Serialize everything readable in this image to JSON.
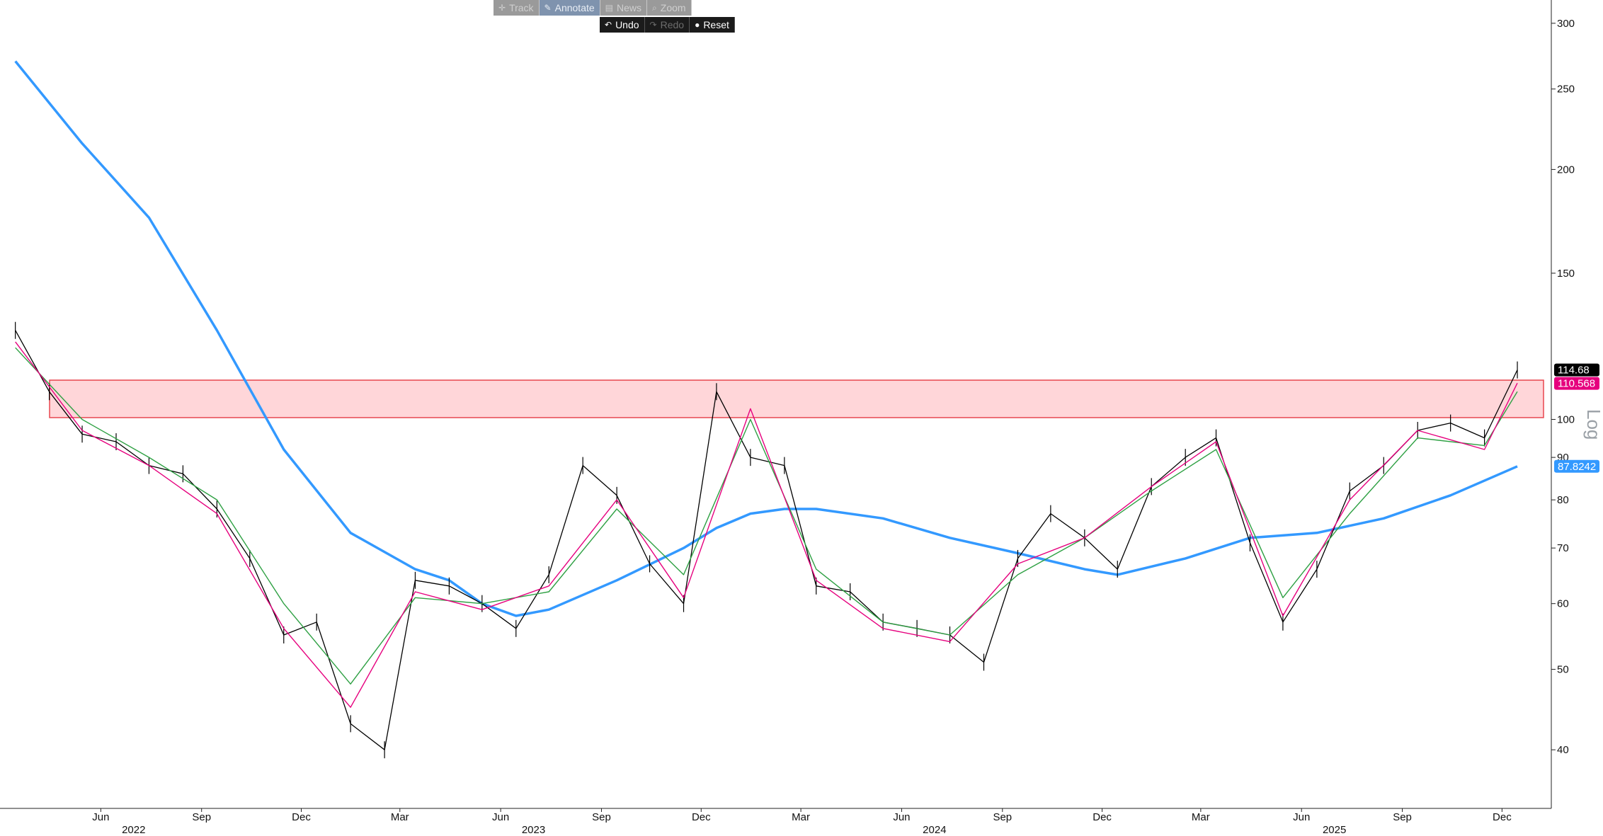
{
  "toolbar_top": [
    {
      "icon": "crosshair-icon",
      "glyph": "✛",
      "label": "Track",
      "active": false
    },
    {
      "icon": "pencil-icon",
      "glyph": "✎",
      "label": "Annotate",
      "active": true
    },
    {
      "icon": "news-icon",
      "glyph": "▤",
      "label": "News",
      "active": false
    },
    {
      "icon": "zoom-icon",
      "glyph": "⌕",
      "label": "Zoom",
      "active": false
    }
  ],
  "toolbar_bottom": [
    {
      "icon": "undo-icon",
      "glyph": "↶",
      "label": "Undo",
      "enabled": true
    },
    {
      "icon": "redo-icon",
      "glyph": "↷",
      "label": "Redo",
      "enabled": false
    },
    {
      "icon": "reset-icon",
      "glyph": "●",
      "label": "Reset",
      "enabled": true
    }
  ],
  "colors": {
    "price": "#000000",
    "ma_fast": "#e6007e",
    "ma_mid": "#2ea043",
    "ma_long": "#3399ff",
    "zone_fill": "#ffd6d9",
    "zone_line": "#e8474f"
  },
  "chart_data": {
    "type": "line",
    "scale": "log",
    "ylim": [
      34,
      320
    ],
    "y_ticks": [
      40,
      50,
      60,
      70,
      80,
      90,
      100,
      150,
      200,
      250,
      300
    ],
    "y_axis_side_text": "Log",
    "x_month_labels": [
      "Jun",
      "Sep",
      "Dec",
      "Mar",
      "Jun",
      "Sep",
      "Dec",
      "Mar",
      "Jun",
      "Sep",
      "Dec",
      "Mar",
      "Jun",
      "Sep",
      "Dec"
    ],
    "x_year_labels": [
      "2022",
      "2023",
      "2024",
      "2025"
    ],
    "resistance_zone": [
      100.5,
      111.5
    ],
    "last_values": [
      {
        "label": "114.68",
        "series": "price"
      },
      {
        "label": "110.568",
        "series": "ma_fast"
      },
      {
        "label": "87.8242",
        "series": "ma_long"
      }
    ],
    "series": [
      {
        "key": "price",
        "x": [
          "2022-03",
          "2022-04",
          "2022-05",
          "2022-06",
          "2022-07",
          "2022-08",
          "2022-09",
          "2022-10",
          "2022-11",
          "2022-12",
          "2023-01",
          "2023-02",
          "2023-03",
          "2023-04",
          "2023-05",
          "2023-06",
          "2023-07",
          "2023-08",
          "2023-09",
          "2023-10",
          "2023-11",
          "2023-12",
          "2024-01",
          "2024-02",
          "2024-03",
          "2024-04",
          "2024-05",
          "2024-06",
          "2024-07",
          "2024-08",
          "2024-09",
          "2024-10",
          "2024-11",
          "2024-12",
          "2025-01",
          "2025-02",
          "2025-03",
          "2025-04",
          "2025-05",
          "2025-06",
          "2025-07",
          "2025-08",
          "2025-09",
          "2025-10",
          "2025-11",
          "2025-12"
        ],
        "values": [
          128,
          108,
          96,
          94,
          88,
          86,
          78,
          68,
          55,
          57,
          43,
          40,
          64,
          63,
          60,
          56,
          65,
          88,
          81,
          67,
          60,
          108,
          90,
          88,
          63,
          62,
          57,
          56,
          55,
          51,
          68,
          77,
          72,
          66,
          83,
          90,
          95,
          71,
          57,
          66,
          82,
          88,
          97,
          99,
          95,
          114.7
        ]
      },
      {
        "key": "ma_fast",
        "x": [
          "2022-03",
          "2022-05",
          "2022-07",
          "2022-09",
          "2022-11",
          "2023-01",
          "2023-03",
          "2023-05",
          "2023-07",
          "2023-09",
          "2023-11",
          "2024-01",
          "2024-03",
          "2024-05",
          "2024-07",
          "2024-09",
          "2024-11",
          "2025-01",
          "2025-03",
          "2025-05",
          "2025-07",
          "2025-09",
          "2025-11",
          "2025-12"
        ],
        "values": [
          124,
          97,
          88,
          77,
          56,
          45,
          62,
          59,
          63,
          80,
          61,
          103,
          64,
          56,
          54,
          67,
          72,
          83,
          94,
          58,
          80,
          97,
          92,
          110.6
        ]
      },
      {
        "key": "ma_mid",
        "x": [
          "2022-03",
          "2022-05",
          "2022-07",
          "2022-09",
          "2022-11",
          "2023-01",
          "2023-03",
          "2023-05",
          "2023-07",
          "2023-09",
          "2023-11",
          "2024-01",
          "2024-03",
          "2024-05",
          "2024-07",
          "2024-09",
          "2024-11",
          "2025-01",
          "2025-03",
          "2025-05",
          "2025-07",
          "2025-09",
          "2025-11",
          "2025-12"
        ],
        "values": [
          122,
          100,
          90,
          80,
          60,
          48,
          61,
          60,
          62,
          78,
          65,
          100,
          66,
          57,
          55,
          65,
          72,
          82,
          92,
          61,
          77,
          95,
          93,
          108
        ]
      },
      {
        "key": "ma_long",
        "x": [
          "2022-03",
          "2022-05",
          "2022-07",
          "2022-09",
          "2022-11",
          "2023-01",
          "2023-03",
          "2023-04",
          "2023-05",
          "2023-06",
          "2023-07",
          "2023-09",
          "2023-11",
          "2023-12",
          "2024-01",
          "2024-02",
          "2024-03",
          "2024-05",
          "2024-07",
          "2024-09",
          "2024-11",
          "2024-12",
          "2025-02",
          "2025-04",
          "2025-06",
          "2025-08",
          "2025-10",
          "2025-12"
        ],
        "values": [
          270,
          215,
          175,
          128,
          92,
          73,
          66,
          64,
          60,
          58,
          59,
          64,
          70,
          74,
          77,
          78,
          78,
          76,
          72,
          69,
          66,
          65,
          68,
          72,
          73,
          76,
          81,
          87.8
        ]
      }
    ]
  }
}
